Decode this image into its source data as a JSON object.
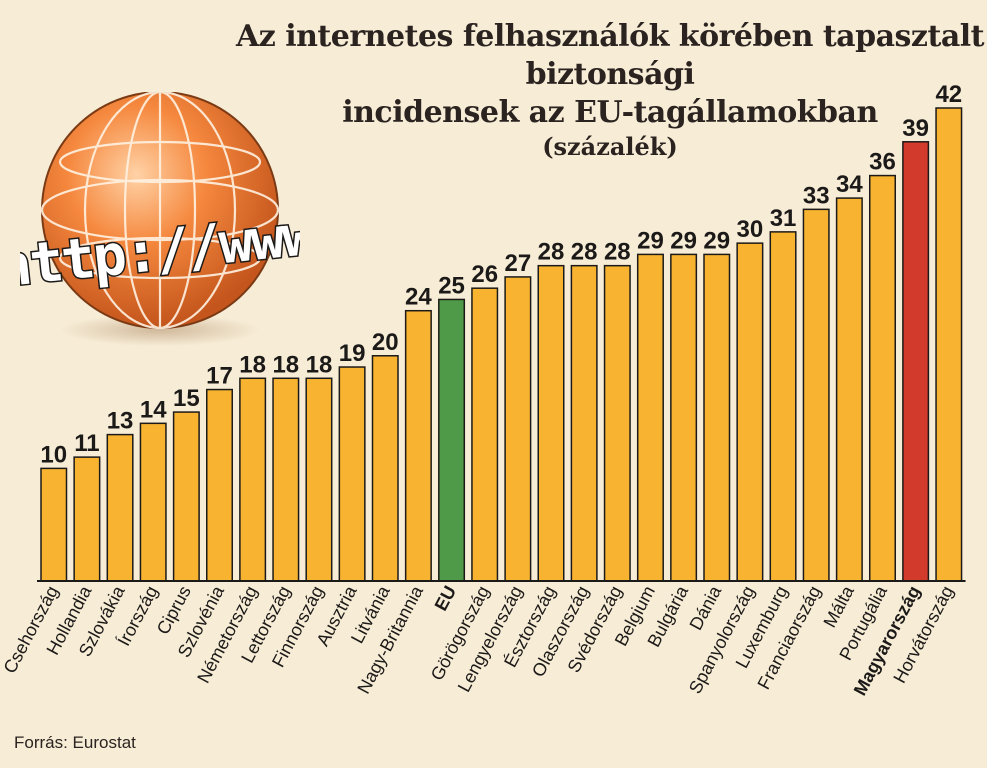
{
  "chart_data": {
    "type": "bar",
    "title_line1": "Az internetes felhasználók körében tapasztalt biztonsági",
    "title_line2": "incidensek az EU-tagállamokban",
    "subtitle": "(százalék)",
    "categories": [
      "Csehország",
      "Hollandia",
      "Szlovákia",
      "Írország",
      "Ciprus",
      "Szlovénia",
      "Németország",
      "Lettország",
      "Finnország",
      "Ausztria",
      "Litvánia",
      "Nagy-Britannia",
      "EU",
      "Görögország",
      "Lengyelország",
      "Észtország",
      "Olaszország",
      "Svédország",
      "Belgium",
      "Bulgária",
      "Dánia",
      "Spanyolország",
      "Luxemburg",
      "Franciaország",
      "Málta",
      "Portugália",
      "Magyarország",
      "Horvátország"
    ],
    "values": [
      10,
      11,
      13,
      14,
      15,
      17,
      18,
      18,
      18,
      19,
      20,
      24,
      25,
      26,
      27,
      28,
      28,
      28,
      29,
      29,
      29,
      30,
      31,
      33,
      34,
      36,
      39,
      42
    ],
    "highlight": {
      "EU": "#4e9a48",
      "Magyarország": "#d23a2c"
    },
    "bold_categories": [
      "EU",
      "Magyarország"
    ],
    "bar_color": "#f8b431",
    "ylim": [
      0,
      42
    ]
  },
  "globe": {
    "text": "http://www"
  },
  "source": "Forrás: Eurostat"
}
